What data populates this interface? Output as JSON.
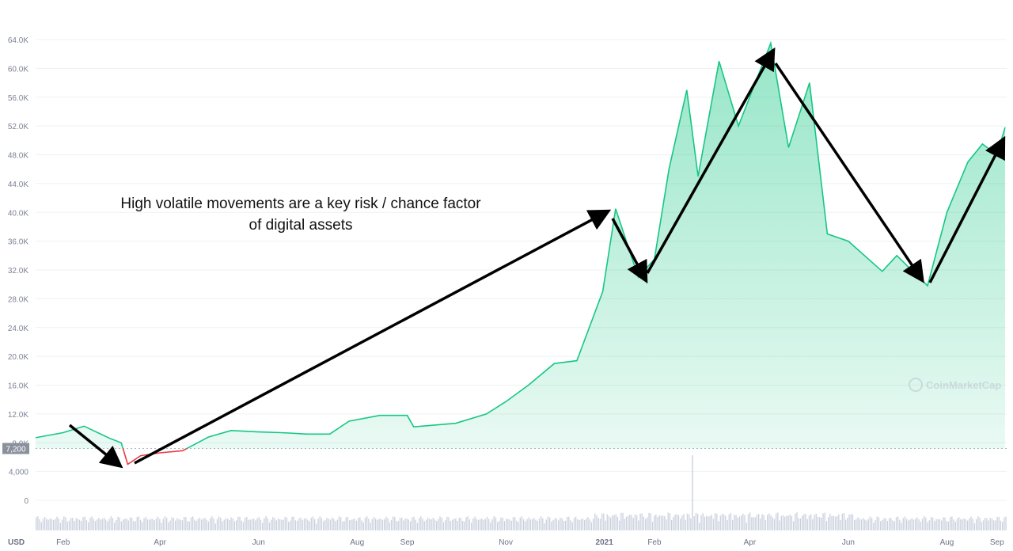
{
  "chart_data": {
    "type": "area",
    "currency_label": "USD",
    "baseline_label": "7,200",
    "baseline_value": 7200,
    "ylim": [
      0,
      64000
    ],
    "y_ticks": [
      {
        "v": 0,
        "label": "0"
      },
      {
        "v": 4000,
        "label": "4,000"
      },
      {
        "v": 8000,
        "label": "8.0K"
      },
      {
        "v": 12000,
        "label": "12.0K"
      },
      {
        "v": 16000,
        "label": "16.0K"
      },
      {
        "v": 20000,
        "label": "20.0K"
      },
      {
        "v": 24000,
        "label": "24.0K"
      },
      {
        "v": 28000,
        "label": "28.0K"
      },
      {
        "v": 32000,
        "label": "32.0K"
      },
      {
        "v": 36000,
        "label": "36.0K"
      },
      {
        "v": 40000,
        "label": "40.0K"
      },
      {
        "v": 44000,
        "label": "44.0K"
      },
      {
        "v": 48000,
        "label": "48.0K"
      },
      {
        "v": 52000,
        "label": "52.0K"
      },
      {
        "v": 56000,
        "label": "56.0K"
      },
      {
        "v": 60000,
        "label": "60.0K"
      },
      {
        "v": 64000,
        "label": "64.0K"
      }
    ],
    "x_ticks": [
      {
        "d": "2020-02-01",
        "label": "Feb"
      },
      {
        "d": "2020-04-01",
        "label": "Apr"
      },
      {
        "d": "2020-06-01",
        "label": "Jun"
      },
      {
        "d": "2020-08-01",
        "label": "Aug"
      },
      {
        "d": "2020-09-01",
        "label": "Sep"
      },
      {
        "d": "2020-11-01",
        "label": "Nov"
      },
      {
        "d": "2021-01-01",
        "label": "2021"
      },
      {
        "d": "2021-02-01",
        "label": "Feb"
      },
      {
        "d": "2021-04-01",
        "label": "Apr"
      },
      {
        "d": "2021-06-01",
        "label": "Jun"
      },
      {
        "d": "2021-08-01",
        "label": "Aug"
      },
      {
        "d": "2021-09-01",
        "label": "Sep"
      }
    ],
    "xlim": [
      "2020-01-15",
      "2021-09-07"
    ],
    "series": [
      {
        "points": [
          [
            "2020-01-15",
            8700
          ],
          [
            "2020-02-01",
            9400
          ],
          [
            "2020-02-14",
            10300
          ],
          [
            "2020-03-01",
            8600
          ],
          [
            "2020-03-08",
            8000
          ],
          [
            "2020-03-12",
            5000
          ],
          [
            "2020-03-20",
            6200
          ],
          [
            "2020-04-01",
            6600
          ],
          [
            "2020-04-15",
            6900
          ],
          [
            "2020-05-01",
            8800
          ],
          [
            "2020-05-15",
            9700
          ],
          [
            "2020-06-01",
            9500
          ],
          [
            "2020-06-15",
            9400
          ],
          [
            "2020-07-01",
            9200
          ],
          [
            "2020-07-15",
            9200
          ],
          [
            "2020-07-27",
            11000
          ],
          [
            "2020-08-15",
            11800
          ],
          [
            "2020-09-01",
            11800
          ],
          [
            "2020-09-05",
            10200
          ],
          [
            "2020-10-01",
            10700
          ],
          [
            "2020-10-20",
            12000
          ],
          [
            "2020-11-01",
            13700
          ],
          [
            "2020-11-15",
            16000
          ],
          [
            "2020-12-01",
            19000
          ],
          [
            "2020-12-15",
            19400
          ],
          [
            "2020-12-31",
            29000
          ],
          [
            "2021-01-08",
            40500
          ],
          [
            "2021-01-22",
            31000
          ],
          [
            "2021-02-01",
            33500
          ],
          [
            "2021-02-10",
            46000
          ],
          [
            "2021-02-21",
            57000
          ],
          [
            "2021-02-28",
            45000
          ],
          [
            "2021-03-13",
            61000
          ],
          [
            "2021-03-25",
            52000
          ],
          [
            "2021-04-14",
            63500
          ],
          [
            "2021-04-25",
            49000
          ],
          [
            "2021-05-08",
            58000
          ],
          [
            "2021-05-19",
            37000
          ],
          [
            "2021-06-01",
            36000
          ],
          [
            "2021-06-22",
            31800
          ],
          [
            "2021-07-01",
            34000
          ],
          [
            "2021-07-20",
            29800
          ],
          [
            "2021-08-01",
            40000
          ],
          [
            "2021-08-14",
            47000
          ],
          [
            "2021-08-23",
            49500
          ],
          [
            "2021-09-01",
            48000
          ],
          [
            "2021-09-06",
            51800
          ]
        ]
      }
    ],
    "colors": {
      "up": "#16c784",
      "down": "#ea3943",
      "grid": "#eef0f3",
      "volume": "#c9cfdc"
    },
    "annotation": {
      "line1": "High volatile movements are a key risk / chance factor",
      "line2": "of digital assets"
    },
    "watermark": "CoinMarketCap"
  }
}
